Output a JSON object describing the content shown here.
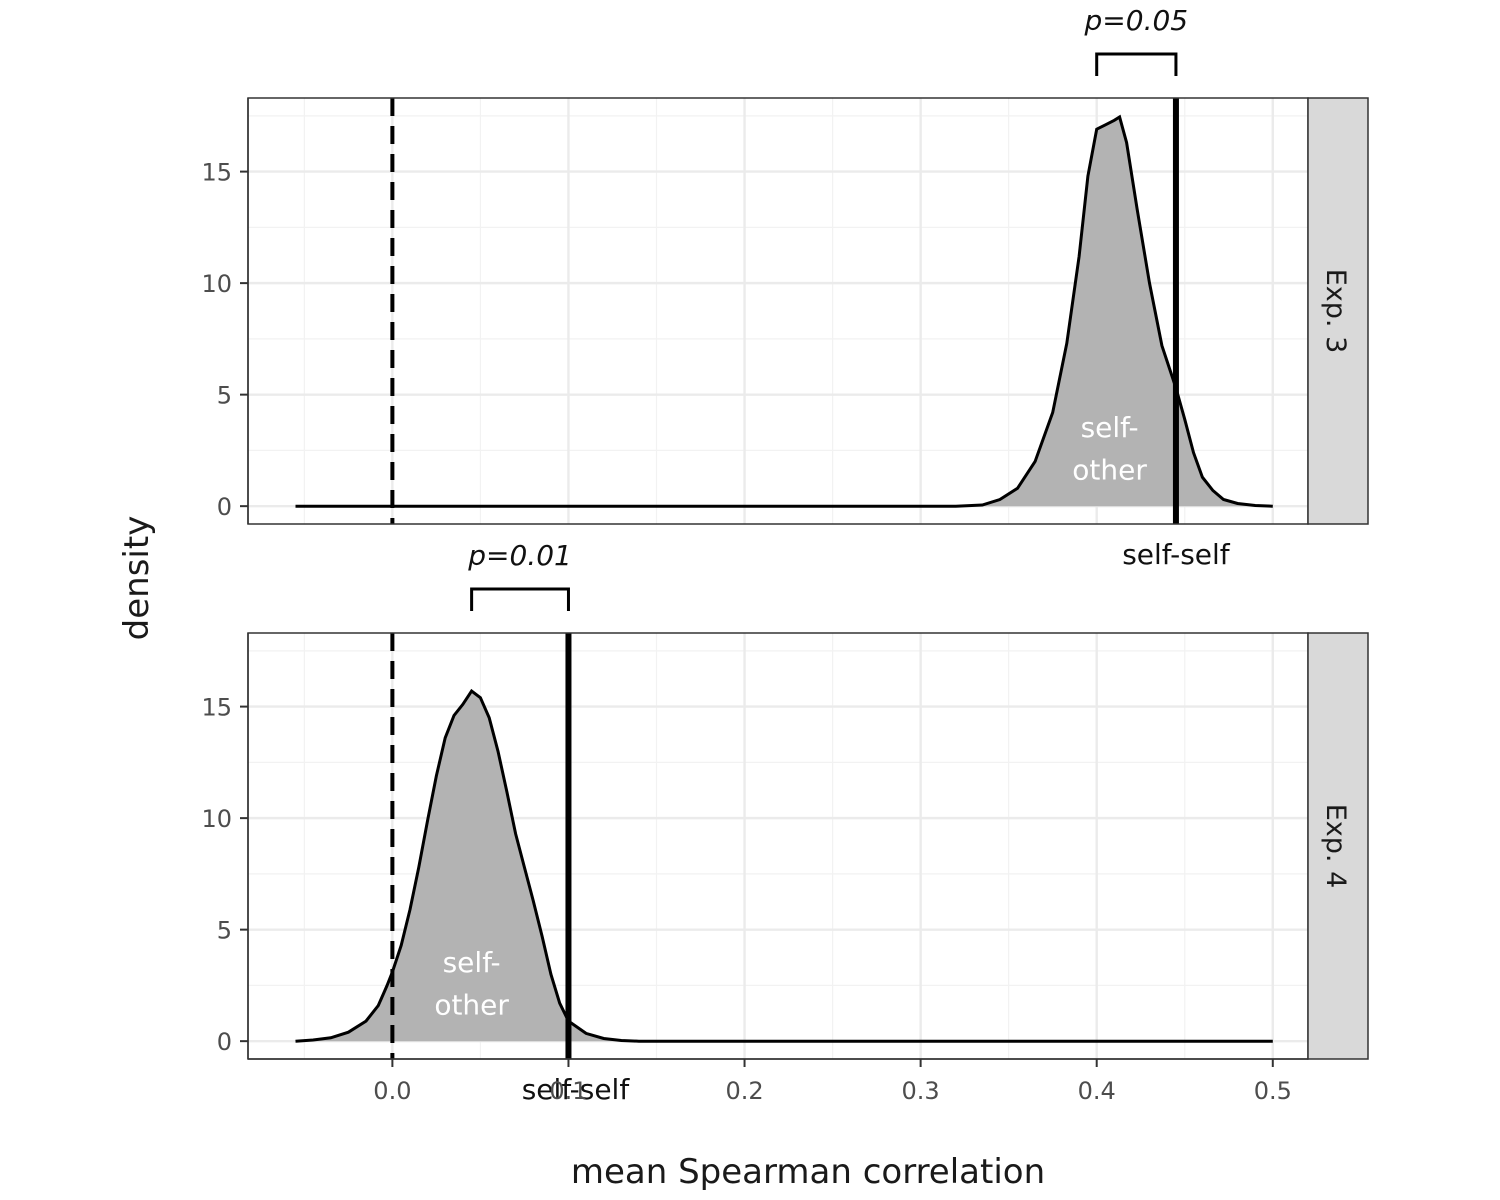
{
  "chart_data": {
    "type": "area",
    "xlabel": "mean Spearman correlation",
    "ylabel": "density",
    "xlim": [
      -0.082,
      0.52
    ],
    "ylim": [
      -0.8,
      18.3
    ],
    "x_ticks": [
      "0.0",
      "0.1",
      "0.2",
      "0.3",
      "0.4",
      "0.5"
    ],
    "x_tick_values": [
      0.0,
      0.1,
      0.2,
      0.3,
      0.4,
      0.5
    ],
    "y_ticks": [
      "0",
      "5",
      "10",
      "15"
    ],
    "y_tick_values": [
      0,
      5,
      10,
      15
    ],
    "grid": true,
    "null_line_x": 0.0,
    "panels": [
      {
        "strip": "Exp. 3",
        "self_self": 0.445,
        "self_self_label": "self-self",
        "dist_label_line1": "self-",
        "dist_label_line2": "other",
        "p_label": "p=0.05",
        "bracket_from": 0.4,
        "bracket_to": 0.445,
        "curve": [
          [
            -0.055,
            0
          ],
          [
            0.0,
            0
          ],
          [
            0.1,
            0
          ],
          [
            0.2,
            0
          ],
          [
            0.3,
            0
          ],
          [
            0.32,
            0
          ],
          [
            0.335,
            0.05
          ],
          [
            0.345,
            0.3
          ],
          [
            0.355,
            0.8
          ],
          [
            0.365,
            2.0
          ],
          [
            0.375,
            4.2
          ],
          [
            0.383,
            7.3
          ],
          [
            0.39,
            11.2
          ],
          [
            0.395,
            14.8
          ],
          [
            0.4,
            16.9
          ],
          [
            0.405,
            17.1
          ],
          [
            0.41,
            17.3
          ],
          [
            0.413,
            17.45
          ],
          [
            0.417,
            16.3
          ],
          [
            0.423,
            13.3
          ],
          [
            0.43,
            10.0
          ],
          [
            0.437,
            7.2
          ],
          [
            0.445,
            5.3
          ],
          [
            0.45,
            3.9
          ],
          [
            0.455,
            2.4
          ],
          [
            0.46,
            1.3
          ],
          [
            0.466,
            0.7
          ],
          [
            0.472,
            0.3
          ],
          [
            0.48,
            0.12
          ],
          [
            0.49,
            0.03
          ],
          [
            0.5,
            0
          ]
        ]
      },
      {
        "strip": "Exp. 4",
        "self_self": 0.1,
        "self_self_label": "self-self",
        "dist_label_line1": "self-",
        "dist_label_line2": "other",
        "p_label": "p=0.01",
        "bracket_from": 0.045,
        "bracket_to": 0.1,
        "curve": [
          [
            -0.055,
            0
          ],
          [
            -0.045,
            0.05
          ],
          [
            -0.035,
            0.15
          ],
          [
            -0.025,
            0.4
          ],
          [
            -0.015,
            0.9
          ],
          [
            -0.008,
            1.6
          ],
          [
            -0.003,
            2.5
          ],
          [
            0.0,
            3.1
          ],
          [
            0.005,
            4.3
          ],
          [
            0.01,
            5.9
          ],
          [
            0.015,
            7.8
          ],
          [
            0.02,
            9.9
          ],
          [
            0.025,
            11.9
          ],
          [
            0.03,
            13.6
          ],
          [
            0.035,
            14.6
          ],
          [
            0.04,
            15.1
          ],
          [
            0.045,
            15.7
          ],
          [
            0.05,
            15.4
          ],
          [
            0.055,
            14.5
          ],
          [
            0.06,
            13.0
          ],
          [
            0.065,
            11.2
          ],
          [
            0.07,
            9.3
          ],
          [
            0.075,
            7.8
          ],
          [
            0.08,
            6.3
          ],
          [
            0.085,
            4.7
          ],
          [
            0.09,
            3.0
          ],
          [
            0.095,
            1.7
          ],
          [
            0.1,
            0.9
          ],
          [
            0.11,
            0.35
          ],
          [
            0.12,
            0.12
          ],
          [
            0.13,
            0.03
          ],
          [
            0.14,
            0
          ],
          [
            0.2,
            0
          ],
          [
            0.3,
            0
          ],
          [
            0.4,
            0
          ],
          [
            0.5,
            0
          ]
        ]
      }
    ]
  }
}
